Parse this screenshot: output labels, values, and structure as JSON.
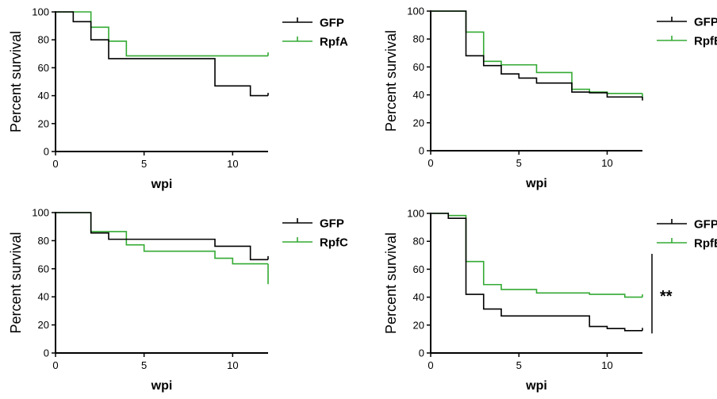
{
  "colors": {
    "gfp": "#000000",
    "rpf": "#33aa33",
    "axis": "#000000"
  },
  "chart_data": [
    {
      "type": "line",
      "step": true,
      "xlabel": "wpi",
      "ylabel": "Percent survival",
      "xlim": [
        0,
        12
      ],
      "ylim": [
        0,
        100
      ],
      "xticks": [
        0,
        5,
        10
      ],
      "yticks": [
        0,
        20,
        40,
        60,
        80,
        100
      ],
      "legend_position": "right",
      "annotation": "",
      "series": [
        {
          "name": "GFP",
          "color": "#000000",
          "steps": [
            [
              0,
              100
            ],
            [
              1,
              93
            ],
            [
              2,
              80
            ],
            [
              3,
              66.5
            ],
            [
              9,
              47
            ],
            [
              11,
              40
            ],
            [
              12,
              40
            ]
          ],
          "end_tick": 42
        },
        {
          "name": "RpfA",
          "color": "#33aa33",
          "steps": [
            [
              0,
              100
            ],
            [
              2,
              89
            ],
            [
              3,
              79
            ],
            [
              4,
              68.5
            ],
            [
              12,
              68.5
            ]
          ],
          "end_tick": 71
        }
      ]
    },
    {
      "type": "line",
      "step": true,
      "xlabel": "wpi",
      "ylabel": "Percent survival",
      "xlim": [
        0,
        12
      ],
      "ylim": [
        0,
        100
      ],
      "xticks": [
        0,
        5,
        10
      ],
      "yticks": [
        0,
        20,
        40,
        60,
        80,
        100
      ],
      "legend_position": "right",
      "annotation": "",
      "series": [
        {
          "name": "GFP",
          "color": "#000000",
          "steps": [
            [
              0,
              100
            ],
            [
              2,
              68
            ],
            [
              3,
              61
            ],
            [
              4,
              55
            ],
            [
              5,
              52
            ],
            [
              6,
              48.5
            ],
            [
              8,
              42
            ],
            [
              9,
              41.5
            ],
            [
              10,
              38.5
            ],
            [
              12,
              38.5
            ]
          ],
          "end_tick": 36
        },
        {
          "name": "RpfB",
          "color": "#33aa33",
          "steps": [
            [
              0,
              100
            ],
            [
              2,
              85
            ],
            [
              3,
              64
            ],
            [
              4,
              61.5
            ],
            [
              6,
              56
            ],
            [
              8,
              44
            ],
            [
              9,
              42
            ],
            [
              10,
              41
            ],
            [
              12,
              41
            ]
          ],
          "end_tick": 38
        }
      ]
    },
    {
      "type": "line",
      "step": true,
      "xlabel": "wpi",
      "ylabel": "Percent survival",
      "xlim": [
        0,
        12
      ],
      "ylim": [
        0,
        100
      ],
      "xticks": [
        0,
        5,
        10
      ],
      "yticks": [
        0,
        20,
        40,
        60,
        80,
        100
      ],
      "legend_position": "right",
      "annotation": "",
      "series": [
        {
          "name": "GFP",
          "color": "#000000",
          "steps": [
            [
              0,
              100
            ],
            [
              2,
              85.5
            ],
            [
              3,
              81
            ],
            [
              9,
              76
            ],
            [
              11,
              66.5
            ],
            [
              12,
              66.5
            ]
          ],
          "end_tick": 69
        },
        {
          "name": "RpfC",
          "color": "#33aa33",
          "steps": [
            [
              0,
              100
            ],
            [
              2,
              86.5
            ],
            [
              4,
              77
            ],
            [
              5,
              72.5
            ],
            [
              9,
              67.5
            ],
            [
              10,
              63.5
            ],
            [
              12,
              63.5
            ]
          ],
          "end_tick": 49
        }
      ]
    },
    {
      "type": "line",
      "step": true,
      "xlabel": "wpi",
      "ylabel": "Percent survival",
      "xlim": [
        0,
        12
      ],
      "ylim": [
        0,
        100
      ],
      "xticks": [
        0,
        5,
        10
      ],
      "yticks": [
        0,
        20,
        40,
        60,
        80,
        100
      ],
      "legend_position": "right",
      "annotation": "**",
      "series": [
        {
          "name": "GFP",
          "color": "#000000",
          "steps": [
            [
              0,
              100
            ],
            [
              1,
              96.5
            ],
            [
              2,
              42
            ],
            [
              3,
              31.5
            ],
            [
              4,
              26.5
            ],
            [
              9,
              19
            ],
            [
              10,
              17.5
            ],
            [
              11,
              16
            ],
            [
              12,
              16
            ]
          ],
          "end_tick": 18
        },
        {
          "name": "RpfE",
          "color": "#33aa33",
          "steps": [
            [
              0,
              100
            ],
            [
              1,
              98.5
            ],
            [
              2,
              65.5
            ],
            [
              3,
              49
            ],
            [
              4,
              45.5
            ],
            [
              6,
              43
            ],
            [
              9,
              42
            ],
            [
              11,
              40
            ],
            [
              12,
              40
            ]
          ],
          "end_tick": 42
        }
      ]
    }
  ]
}
